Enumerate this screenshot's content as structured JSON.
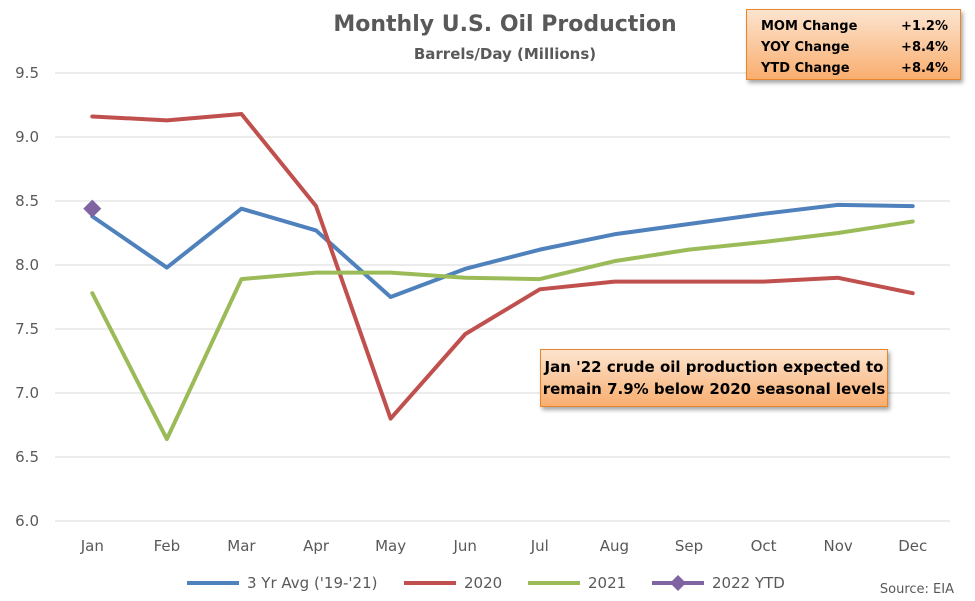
{
  "chart_data": {
    "type": "line",
    "title": "Monthly U.S. Oil Production",
    "subtitle": "Barrels/Day (Millions)",
    "categories": [
      "Jan",
      "Feb",
      "Mar",
      "Apr",
      "May",
      "Jun",
      "Jul",
      "Aug",
      "Sep",
      "Oct",
      "Nov",
      "Dec"
    ],
    "yticks": [
      "6.0",
      "6.5",
      "7.0",
      "7.5",
      "8.0",
      "8.5",
      "9.0",
      "9.5"
    ],
    "ylim": [
      6.0,
      9.5
    ],
    "grid": true,
    "legend_position": "bottom",
    "series": [
      {
        "name": "3 Yr Avg ('19-'21)",
        "color": "#4f81bd",
        "marker": "none",
        "values": [
          8.38,
          7.98,
          8.44,
          8.27,
          7.75,
          7.97,
          8.12,
          8.24,
          8.32,
          8.4,
          8.47,
          8.46
        ]
      },
      {
        "name": "2020",
        "color": "#c0504d",
        "marker": "none",
        "values": [
          9.16,
          9.13,
          9.18,
          8.46,
          6.8,
          7.46,
          7.81,
          7.87,
          7.87,
          7.87,
          7.9,
          7.78
        ]
      },
      {
        "name": "2021",
        "color": "#9bbb59",
        "marker": "none",
        "values": [
          7.78,
          6.64,
          7.89,
          7.94,
          7.94,
          7.9,
          7.89,
          8.03,
          8.12,
          8.18,
          8.25,
          8.34
        ]
      },
      {
        "name": "2022 YTD",
        "color": "#8064a2",
        "marker": "diamond",
        "values": [
          8.44,
          null,
          null,
          null,
          null,
          null,
          null,
          null,
          null,
          null,
          null,
          null
        ]
      }
    ],
    "source": "Source: EIA"
  },
  "stats_box": {
    "rows": [
      {
        "label": "MOM Change",
        "value": "+1.2%"
      },
      {
        "label": "YOY Change",
        "value": "+8.4%"
      },
      {
        "label": "YTD Change",
        "value": "+8.4%"
      }
    ]
  },
  "note": {
    "line1": "Jan '22 crude oil production expected to",
    "line2": "remain 7.9% below 2020 seasonal levels"
  }
}
